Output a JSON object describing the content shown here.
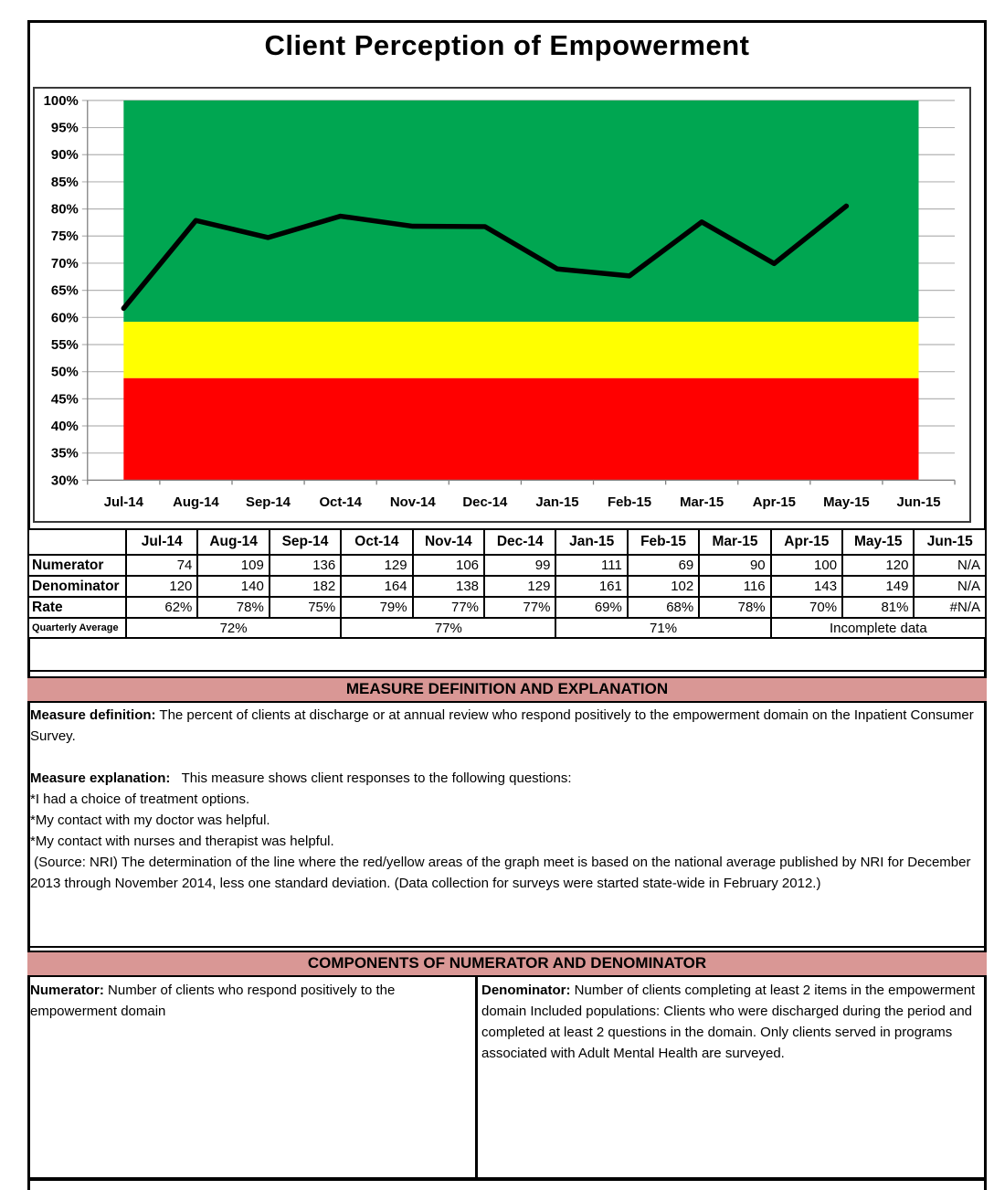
{
  "title": "Client Perception of Empowerment",
  "colors": {
    "band_green": "#00a651",
    "band_yellow": "#ffff00",
    "band_red": "#ff0000",
    "header_pink": "#d99795",
    "line_black": "#000000",
    "gridline_gray": "#b3b3b3",
    "axis_gray": "#808080"
  },
  "chart_data": {
    "type": "line",
    "title": "Client Perception of Empowerment",
    "categories": [
      "Jul-14",
      "Aug-14",
      "Sep-14",
      "Oct-14",
      "Nov-14",
      "Dec-14",
      "Jan-15",
      "Feb-15",
      "Mar-15",
      "Apr-15",
      "May-15",
      "Jun-15"
    ],
    "series": [
      {
        "name": "Rate",
        "values": [
          61.67,
          77.86,
          74.73,
          78.66,
          76.81,
          76.74,
          68.94,
          67.65,
          77.59,
          69.93,
          80.54,
          null
        ]
      }
    ],
    "xlabel": "",
    "ylabel": "",
    "ylim": [
      30,
      100
    ],
    "ytick_step": 5,
    "ytick_suffix": "%",
    "grid": true,
    "legend": "none",
    "line_color": "#000000",
    "bands": [
      {
        "name": "green-zone",
        "color": "#00a651",
        "from": 59.2,
        "to": 100
      },
      {
        "name": "yellow-zone",
        "color": "#ffff00",
        "from": 48.8,
        "to": 59.2
      },
      {
        "name": "red-zone",
        "color": "#ff0000",
        "from": 30,
        "to": 48.8
      }
    ]
  },
  "table": {
    "corner": "",
    "columns": [
      "Jul-14",
      "Aug-14",
      "Sep-14",
      "Oct-14",
      "Nov-14",
      "Dec-14",
      "Jan-15",
      "Feb-15",
      "Mar-15",
      "Apr-15",
      "May-15",
      "Jun-15"
    ],
    "rows": [
      {
        "label": "Numerator",
        "values": [
          "74",
          "109",
          "136",
          "129",
          "106",
          "99",
          "111",
          "69",
          "90",
          "100",
          "120",
          "N/A"
        ]
      },
      {
        "label": "Denominator",
        "values": [
          "120",
          "140",
          "182",
          "164",
          "138",
          "129",
          "161",
          "102",
          "116",
          "143",
          "149",
          "N/A"
        ]
      },
      {
        "label": "Rate",
        "values": [
          "62%",
          "78%",
          "75%",
          "79%",
          "77%",
          "77%",
          "69%",
          "68%",
          "78%",
          "70%",
          "81%",
          "#N/A"
        ]
      }
    ],
    "quarterly": {
      "label": "Quarterly Average",
      "groups": [
        {
          "text": "72%",
          "span": 3
        },
        {
          "text": "77%",
          "span": 3
        },
        {
          "text": "71%",
          "span": 3
        },
        {
          "text": "Incomplete data",
          "span": 3
        }
      ]
    }
  },
  "sections": {
    "definition_header": "MEASURE DEFINITION AND EXPLANATION",
    "definition_paragraphs": [
      {
        "lead": "Measure definition:",
        "text": " The percent of clients at discharge or at annual review who respond positively to the empowerment domain on the Inpatient Consumer Survey."
      },
      {
        "lead": "",
        "text": " "
      },
      {
        "lead": "Measure explanation:",
        "text": "   This measure shows client responses to the following questions:"
      },
      {
        "lead": "",
        "text": "*I had a choice of treatment options."
      },
      {
        "lead": "",
        "text": "*My contact with my doctor was helpful."
      },
      {
        "lead": "",
        "text": "*My contact with nurses and therapist was helpful."
      },
      {
        "lead": "",
        "text": " (Source: NRI) The determination of the line where the red/yellow areas of the graph meet is based on the national average published by NRI for December 2013 through November 2014, less one standard deviation. (Data collection for surveys were started state-wide in February 2012.)"
      }
    ],
    "components_header": "COMPONENTS OF NUMERATOR AND DENOMINATOR",
    "numerator_label": "Numerator:",
    "numerator_text": " Number of clients who respond positively to the empowerment domain",
    "denominator_label": "Denominator:",
    "denominator_text": " Number of clients completing at least 2 items in the empowerment domain Included populations: Clients who were discharged during the period and completed at least 2 questions in the domain. Only clients served in programs associated with Adult Mental Health are surveyed."
  }
}
